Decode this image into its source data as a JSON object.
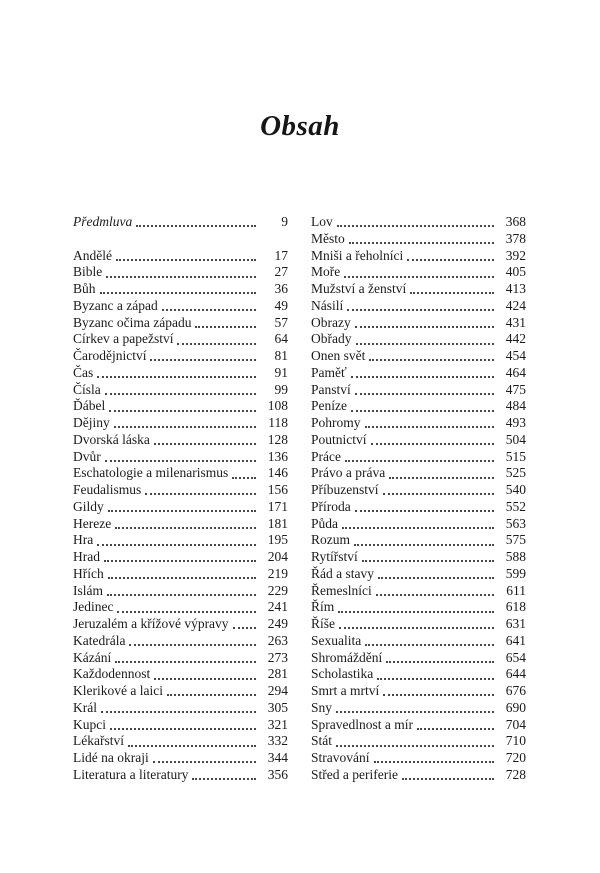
{
  "page": {
    "title": "Obsah"
  },
  "colors": {
    "text": "#1b1b1b",
    "background": "#ffffff"
  },
  "toc": {
    "left": {
      "preface": {
        "label": "Předmluva",
        "page": "9"
      },
      "entries": [
        {
          "label": "Andělé",
          "page": "17"
        },
        {
          "label": "Bible",
          "page": "27"
        },
        {
          "label": "Bůh",
          "page": "36"
        },
        {
          "label": "Byzanc a západ",
          "page": "49"
        },
        {
          "label": "Byzanc očima západu",
          "page": "57"
        },
        {
          "label": "Církev a papežství",
          "page": "64"
        },
        {
          "label": "Čarodějnictví",
          "page": "81"
        },
        {
          "label": "Čas",
          "page": "91"
        },
        {
          "label": "Čísla",
          "page": "99"
        },
        {
          "label": "Ďábel",
          "page": "108"
        },
        {
          "label": "Dějiny",
          "page": "118"
        },
        {
          "label": "Dvorská láska",
          "page": "128"
        },
        {
          "label": "Dvůr",
          "page": "136"
        },
        {
          "label": "Eschatologie a milenarismus",
          "page": "146"
        },
        {
          "label": "Feudalismus",
          "page": "156"
        },
        {
          "label": "Gildy",
          "page": "171"
        },
        {
          "label": "Hereze",
          "page": "181"
        },
        {
          "label": "Hra",
          "page": "195"
        },
        {
          "label": "Hrad",
          "page": "204"
        },
        {
          "label": "Hřích",
          "page": "219"
        },
        {
          "label": "Islám",
          "page": "229"
        },
        {
          "label": "Jedinec",
          "page": "241"
        },
        {
          "label": "Jeruzalém a křížové výpravy",
          "page": "249"
        },
        {
          "label": "Katedrála",
          "page": "263"
        },
        {
          "label": "Kázání",
          "page": "273"
        },
        {
          "label": "Každodennost",
          "page": "281"
        },
        {
          "label": "Klerikové a laici",
          "page": "294"
        },
        {
          "label": "Král",
          "page": "305"
        },
        {
          "label": "Kupci",
          "page": "321"
        },
        {
          "label": "Lékařství",
          "page": "332"
        },
        {
          "label": "Lidé na okraji",
          "page": "344"
        },
        {
          "label": "Literatura a literatury",
          "page": "356"
        }
      ]
    },
    "right": {
      "entries": [
        {
          "label": "Lov",
          "page": "368"
        },
        {
          "label": "Město",
          "page": "378"
        },
        {
          "label": "Mniši a řeholníci",
          "page": "392"
        },
        {
          "label": "Moře",
          "page": "405"
        },
        {
          "label": "Mužství a ženství",
          "page": "413"
        },
        {
          "label": "Násilí",
          "page": "424"
        },
        {
          "label": "Obrazy",
          "page": "431"
        },
        {
          "label": "Obřady",
          "page": "442"
        },
        {
          "label": "Onen svět",
          "page": "454"
        },
        {
          "label": "Paměť",
          "page": "464"
        },
        {
          "label": "Panství",
          "page": "475"
        },
        {
          "label": "Peníze",
          "page": "484"
        },
        {
          "label": "Pohromy",
          "page": "493"
        },
        {
          "label": "Poutnictví",
          "page": "504"
        },
        {
          "label": "Práce",
          "page": "515"
        },
        {
          "label": "Právo a práva",
          "page": "525"
        },
        {
          "label": "Příbuzenství",
          "page": "540"
        },
        {
          "label": "Příroda",
          "page": "552"
        },
        {
          "label": "Půda",
          "page": "563"
        },
        {
          "label": "Rozum",
          "page": "575"
        },
        {
          "label": "Rytířství",
          "page": "588"
        },
        {
          "label": "Řád a stavy",
          "page": "599"
        },
        {
          "label": "Řemeslníci",
          "page": "611"
        },
        {
          "label": "Řím",
          "page": "618"
        },
        {
          "label": "Říše",
          "page": "631"
        },
        {
          "label": "Sexualita",
          "page": "641"
        },
        {
          "label": "Shromáždění",
          "page": "654"
        },
        {
          "label": "Scholastika",
          "page": "644"
        },
        {
          "label": "Smrt a mrtví",
          "page": "676"
        },
        {
          "label": "Sny",
          "page": "690"
        },
        {
          "label": "Spravedlnost a mír",
          "page": "704"
        },
        {
          "label": "Stát",
          "page": "710"
        },
        {
          "label": "Stravování",
          "page": "720"
        },
        {
          "label": "Střed a periferie",
          "page": "728"
        }
      ]
    }
  }
}
